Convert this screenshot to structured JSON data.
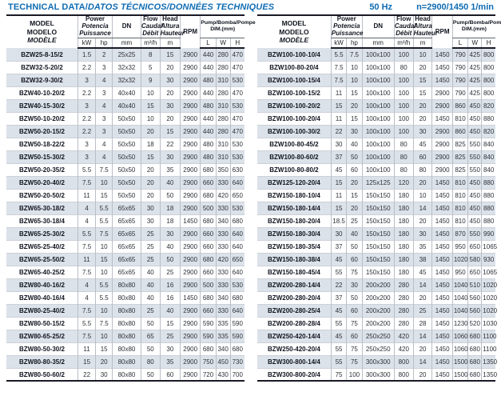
{
  "header": {
    "title_main": "TECHNICAL DATA/",
    "title_intl": "DATOS TÉCNICOS/DONNÉES TECHNIQUES",
    "frequency": "50 Hz",
    "speed": "n=2900/1450 1/min"
  },
  "colors": {
    "accent_blue": "#0f6cb3",
    "row_stripe": "#dce2ea",
    "border_dark": "#1a1a26"
  },
  "table_header": {
    "model": [
      "MODEL",
      "MODELO",
      "MODÈLE"
    ],
    "power": [
      "Power",
      "Potencia",
      "Puissance"
    ],
    "dn": "DN",
    "flow": [
      "Flow",
      "Caudal",
      "Débit"
    ],
    "head_col": [
      "Head",
      "Altura",
      "Hauteur"
    ],
    "rpm": "RPM",
    "dim_line1": "Pump/Bomba/Pompe",
    "dim_line2": "DIM.(mm)",
    "units": {
      "kw": "kW",
      "hp": "hp",
      "dn": "mm",
      "flow": "m³/h",
      "head": "m",
      "l": "L",
      "w": "W",
      "h": "H"
    }
  },
  "left_table": {
    "rows": [
      [
        "BZW25-8-15/2",
        "1.5",
        "2",
        "25x25",
        "8",
        "15",
        "2900",
        "440",
        "280",
        "470"
      ],
      [
        "BZW32-5-20/2",
        "2.2",
        "3",
        "32x32",
        "5",
        "20",
        "2900",
        "440",
        "280",
        "470"
      ],
      [
        "BZW32-9-30/2",
        "3",
        "4",
        "32x32",
        "9",
        "30",
        "2900",
        "480",
        "310",
        "530"
      ],
      [
        "BZW40-10-20/2",
        "2.2",
        "3",
        "40x40",
        "10",
        "20",
        "2900",
        "440",
        "280",
        "470"
      ],
      [
        "BZW40-15-30/2",
        "3",
        "4",
        "40x40",
        "15",
        "30",
        "2900",
        "480",
        "310",
        "530"
      ],
      [
        "BZW50-10-20/2",
        "2.2",
        "3",
        "50x50",
        "10",
        "20",
        "2900",
        "440",
        "280",
        "470"
      ],
      [
        "BZW50-20-15/2",
        "2.2",
        "3",
        "50x50",
        "20",
        "15",
        "2900",
        "440",
        "280",
        "470"
      ],
      [
        "BZW50-18-22/2",
        "3",
        "4",
        "50x50",
        "18",
        "22",
        "2900",
        "480",
        "310",
        "530"
      ],
      [
        "BZW50-15-30/2",
        "3",
        "4",
        "50x50",
        "15",
        "30",
        "2900",
        "480",
        "310",
        "530"
      ],
      [
        "BZW50-20-35/2",
        "5.5",
        "7.5",
        "50x50",
        "20",
        "35",
        "2900",
        "680",
        "350",
        "630"
      ],
      [
        "BZW50-20-40/2",
        "7.5",
        "10",
        "50x50",
        "20",
        "40",
        "2900",
        "660",
        "330",
        "640"
      ],
      [
        "BZW50-20-50/2",
        "11",
        "15",
        "50x50",
        "20",
        "50",
        "2900",
        "680",
        "420",
        "650"
      ],
      [
        "BZW65-30-18/2",
        "4",
        "5.5",
        "65x65",
        "30",
        "18",
        "2900",
        "500",
        "330",
        "530"
      ],
      [
        "BZW65-30-18/4",
        "4",
        "5.5",
        "65x65",
        "30",
        "18",
        "1450",
        "680",
        "340",
        "680"
      ],
      [
        "BZW65-25-30/2",
        "5.5",
        "7.5",
        "65x65",
        "25",
        "30",
        "2900",
        "660",
        "330",
        "640"
      ],
      [
        "BZW65-25-40/2",
        "7.5",
        "10",
        "65x65",
        "25",
        "40",
        "2900",
        "660",
        "330",
        "640"
      ],
      [
        "BZW65-25-50/2",
        "11",
        "15",
        "65x65",
        "25",
        "50",
        "2900",
        "680",
        "420",
        "650"
      ],
      [
        "BZW65-40-25/2",
        "7.5",
        "10",
        "65x65",
        "40",
        "25",
        "2900",
        "660",
        "330",
        "640"
      ],
      [
        "BZW80-40-16/2",
        "4",
        "5.5",
        "80x80",
        "40",
        "16",
        "2900",
        "500",
        "330",
        "530"
      ],
      [
        "BZW80-40-16/4",
        "4",
        "5.5",
        "80x80",
        "40",
        "16",
        "1450",
        "680",
        "340",
        "680"
      ],
      [
        "BZW80-25-40/2",
        "7.5",
        "10",
        "80x80",
        "25",
        "40",
        "2900",
        "660",
        "330",
        "640"
      ],
      [
        "BZW80-50-15/2",
        "5.5",
        "7.5",
        "80x80",
        "50",
        "15",
        "2900",
        "590",
        "335",
        "590"
      ],
      [
        "BZW80-65-25/2",
        "7.5",
        "10",
        "80x80",
        "65",
        "25",
        "2900",
        "590",
        "335",
        "590"
      ],
      [
        "BZW80-50-30/2",
        "11",
        "15",
        "80x80",
        "50",
        "30",
        "2900",
        "680",
        "340",
        "680"
      ],
      [
        "BZW80-80-35/2",
        "15",
        "20",
        "80x80",
        "80",
        "35",
        "2900",
        "750",
        "450",
        "730"
      ],
      [
        "BZW80-50-60/2",
        "22",
        "30",
        "80x80",
        "50",
        "60",
        "2900",
        "720",
        "430",
        "700"
      ]
    ]
  },
  "right_table": {
    "rows": [
      [
        "BZW100-100-10/4",
        "5.5",
        "7.5",
        "100x100",
        "100",
        "10",
        "1450",
        "790",
        "425",
        "800"
      ],
      [
        "BZW100-80-20/4",
        "7.5",
        "10",
        "100x100",
        "80",
        "20",
        "1450",
        "790",
        "425",
        "800"
      ],
      [
        "BZW100-100-15/4",
        "7.5",
        "10",
        "100x100",
        "100",
        "15",
        "1450",
        "790",
        "425",
        "800"
      ],
      [
        "BZW100-100-15/2",
        "11",
        "15",
        "100x100",
        "100",
        "15",
        "2900",
        "790",
        "425",
        "800"
      ],
      [
        "BZW100-100-20/2",
        "15",
        "20",
        "100x100",
        "100",
        "20",
        "2900",
        "860",
        "450",
        "820"
      ],
      [
        "BZW100-100-20/4",
        "11",
        "15",
        "100x100",
        "100",
        "20",
        "1450",
        "810",
        "450",
        "880"
      ],
      [
        "BZW100-100-30/2",
        "22",
        "30",
        "100x100",
        "100",
        "30",
        "2900",
        "860",
        "450",
        "820"
      ],
      [
        "BZW100-80-45/2",
        "30",
        "40",
        "100x100",
        "80",
        "45",
        "2900",
        "825",
        "550",
        "840"
      ],
      [
        "BZW100-80-60/2",
        "37",
        "50",
        "100x100",
        "80",
        "60",
        "2900",
        "825",
        "550",
        "840"
      ],
      [
        "BZW100-80-80/2",
        "45",
        "60",
        "100x100",
        "80",
        "80",
        "2900",
        "825",
        "550",
        "840"
      ],
      [
        "BZW125-120-20/4",
        "15",
        "20",
        "125x125",
        "120",
        "20",
        "1450",
        "810",
        "450",
        "880"
      ],
      [
        "BZW150-180-10/4",
        "11",
        "15",
        "150x150",
        "180",
        "10",
        "1450",
        "810",
        "450",
        "880"
      ],
      [
        "BZW150-180-14/4",
        "15",
        "20",
        "150x150",
        "180",
        "14",
        "1450",
        "810",
        "450",
        "880"
      ],
      [
        "BZW150-180-20/4",
        "18.5",
        "25",
        "150x150",
        "180",
        "20",
        "1450",
        "810",
        "450",
        "880"
      ],
      [
        "BZW150-180-30/4",
        "30",
        "40",
        "150x150",
        "180",
        "30",
        "1450",
        "870",
        "550",
        "990"
      ],
      [
        "BZW150-180-35/4",
        "37",
        "50",
        "150x150",
        "180",
        "35",
        "1450",
        "950",
        "650",
        "1065"
      ],
      [
        "BZW150-180-38/4",
        "45",
        "60",
        "150x150",
        "180",
        "38",
        "1450",
        "1020",
        "580",
        "930"
      ],
      [
        "BZW150-180-45/4",
        "55",
        "75",
        "150x150",
        "180",
        "45",
        "1450",
        "950",
        "650",
        "1065"
      ],
      [
        "BZW200-280-14/4",
        "22",
        "30",
        "200x200",
        "280",
        "14",
        "1450",
        "1040",
        "510",
        "1020"
      ],
      [
        "BZW200-280-20/4",
        "37",
        "50",
        "200x200",
        "280",
        "20",
        "1450",
        "1040",
        "560",
        "1020"
      ],
      [
        "BZW200-280-25/4",
        "45",
        "60",
        "200x200",
        "280",
        "25",
        "1450",
        "1040",
        "560",
        "1020"
      ],
      [
        "BZW200-280-28/4",
        "55",
        "75",
        "200x200",
        "280",
        "28",
        "1450",
        "1230",
        "520",
        "1030"
      ],
      [
        "BZW250-420-14/4",
        "45",
        "60",
        "250x250",
        "420",
        "14",
        "1450",
        "1060",
        "680",
        "1100"
      ],
      [
        "BZW250-420-20/4",
        "55",
        "75",
        "250x250",
        "420",
        "20",
        "1450",
        "1060",
        "680",
        "1100"
      ],
      [
        "BZW300-800-14/4",
        "55",
        "75",
        "300x300",
        "800",
        "14",
        "1450",
        "1500",
        "680",
        "1350"
      ],
      [
        "BZW300-800-20/4",
        "75",
        "100",
        "300x300",
        "800",
        "20",
        "1450",
        "1500",
        "680",
        "1350"
      ]
    ]
  }
}
